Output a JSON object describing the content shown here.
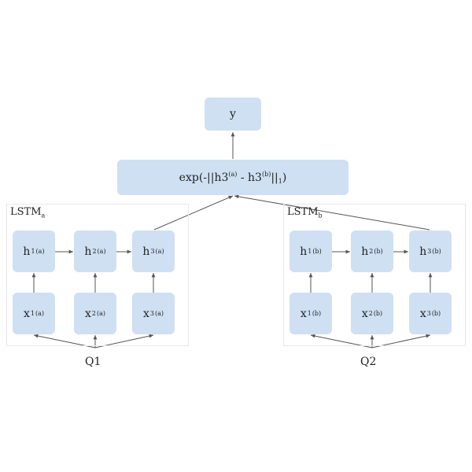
{
  "output": {
    "label": "y"
  },
  "similarity": {
    "prefix": "exp(-||h3",
    "a_sup": "(a)",
    "middle": " - h3",
    "b_sup": "(b)",
    "suffix_bars": "||",
    "norm_sub": "1",
    "close": ")"
  },
  "lstm_a": {
    "title": "LSTM",
    "title_sub": "a",
    "hidden": [
      {
        "base": "h",
        "sub": "1",
        "sup": "(a)"
      },
      {
        "base": "h",
        "sub": "2",
        "sup": "(a)"
      },
      {
        "base": "h",
        "sub": "3",
        "sup": "(a)"
      }
    ],
    "inputs": [
      {
        "base": "x",
        "sub": "1",
        "sup": "(a)"
      },
      {
        "base": "x",
        "sub": "2",
        "sup": "(a)"
      },
      {
        "base": "x",
        "sub": "3",
        "sup": "(a)"
      }
    ],
    "question": "Q1"
  },
  "lstm_b": {
    "title": "LSTM",
    "title_sub": "b",
    "hidden": [
      {
        "base": "h",
        "sub": "1",
        "sup": "(b)"
      },
      {
        "base": "h",
        "sub": "2",
        "sup": "(b)"
      },
      {
        "base": "h",
        "sub": "3",
        "sup": "(b)"
      }
    ],
    "inputs": [
      {
        "base": "x",
        "sub": "1",
        "sup": "(b)"
      },
      {
        "base": "x",
        "sub": "2",
        "sup": "(b)"
      },
      {
        "base": "x",
        "sub": "3",
        "sup": "(b)"
      }
    ],
    "question": "Q2"
  },
  "colors": {
    "node_fill": "#cfe0f3",
    "edge": "#666666",
    "group_border": "#e8e8e8"
  }
}
